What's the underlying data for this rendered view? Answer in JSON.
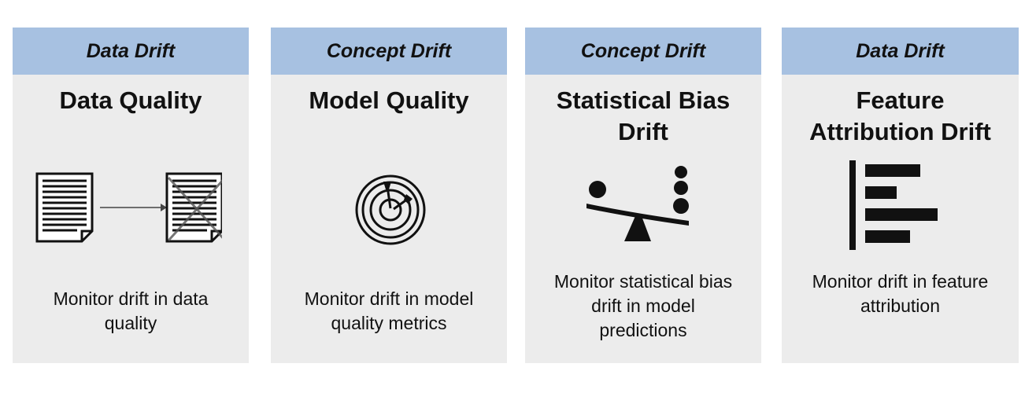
{
  "cards": [
    {
      "header": "Data Drift",
      "title": "Data Quality",
      "description": "Monitor drift in data\nquality",
      "icon": "documents-arrow-crossed-document-icon"
    },
    {
      "header": "Concept Drift",
      "title": "Model Quality",
      "description": "Monitor drift in model\nquality metrics",
      "icon": "target-with-arrows-icon"
    },
    {
      "header": "Concept Drift",
      "title": "Statistical Bias\nDrift",
      "description": "Monitor statistical bias\ndrift in model\npredictions",
      "icon": "seesaw-balance-icon"
    },
    {
      "header": "Data Drift",
      "title": "Feature\nAttribution Drift",
      "description": "Monitor drift in feature\nattribution",
      "icon": "horizontal-bar-chart-icon"
    }
  ],
  "colors": {
    "card_background": "#ececec",
    "header_background": "#a7c1e1",
    "icon": "#111111"
  }
}
